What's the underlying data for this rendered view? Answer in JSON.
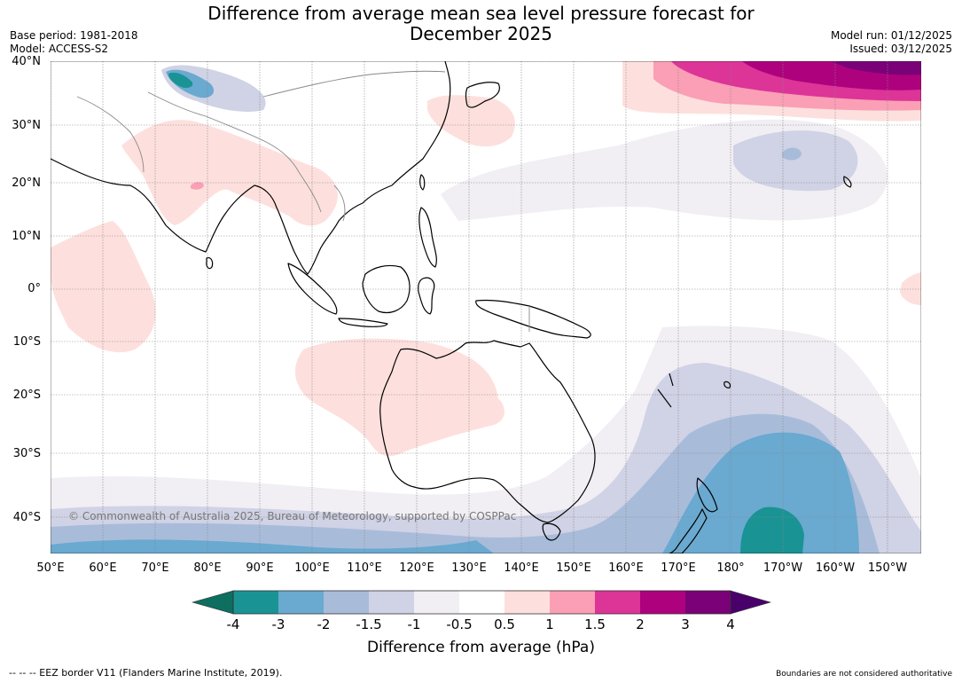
{
  "title": {
    "line1": "Difference from average mean sea level pressure forecast for",
    "line2": "December 2025"
  },
  "meta": {
    "base_period": "Base period: 1981-2018",
    "model": "Model: ACCESS-S2",
    "model_run": "Model run: 01/12/2025",
    "issued": "Issued: 03/12/2025"
  },
  "map": {
    "lat_labels": [
      "40°N",
      "30°N",
      "20°N",
      "10°N",
      "0°",
      "10°S",
      "20°S",
      "30°S",
      "40°S"
    ],
    "lon_labels": [
      "50°E",
      "60°E",
      "70°E",
      "80°E",
      "90°E",
      "100°E",
      "110°E",
      "120°E",
      "130°E",
      "140°E",
      "150°E",
      "160°E",
      "170°E",
      "180°",
      "170°W",
      "160°W",
      "150°W"
    ],
    "copyright": "© Commonwealth of Australia 2025, Bureau of Meteorology, supported by COSPPac",
    "land_outline_color": "#000000"
  },
  "colorbar": {
    "title": "Difference from average (hPa)",
    "tick_labels": [
      "-4",
      "-3",
      "-2",
      "-1.5",
      "-1",
      "-0.5",
      "0.5",
      "1",
      "1.5",
      "2",
      "3",
      "4"
    ],
    "colors": [
      "#1a9394",
      "#6aa9d0",
      "#a8bcda",
      "#d0d2e5",
      "#f1eef4",
      "#ffffff",
      "#fde0dd",
      "#fa9fb5",
      "#dd3497",
      "#ae017e",
      "#7a0177"
    ],
    "under_color": "#0e6e60",
    "over_color": "#49006a"
  },
  "footer": {
    "eez": "--  --  -- EEZ border V11 (Flanders Marine Institute, 2019).",
    "boundaries": "Boundaries are not considered authoritative"
  }
}
